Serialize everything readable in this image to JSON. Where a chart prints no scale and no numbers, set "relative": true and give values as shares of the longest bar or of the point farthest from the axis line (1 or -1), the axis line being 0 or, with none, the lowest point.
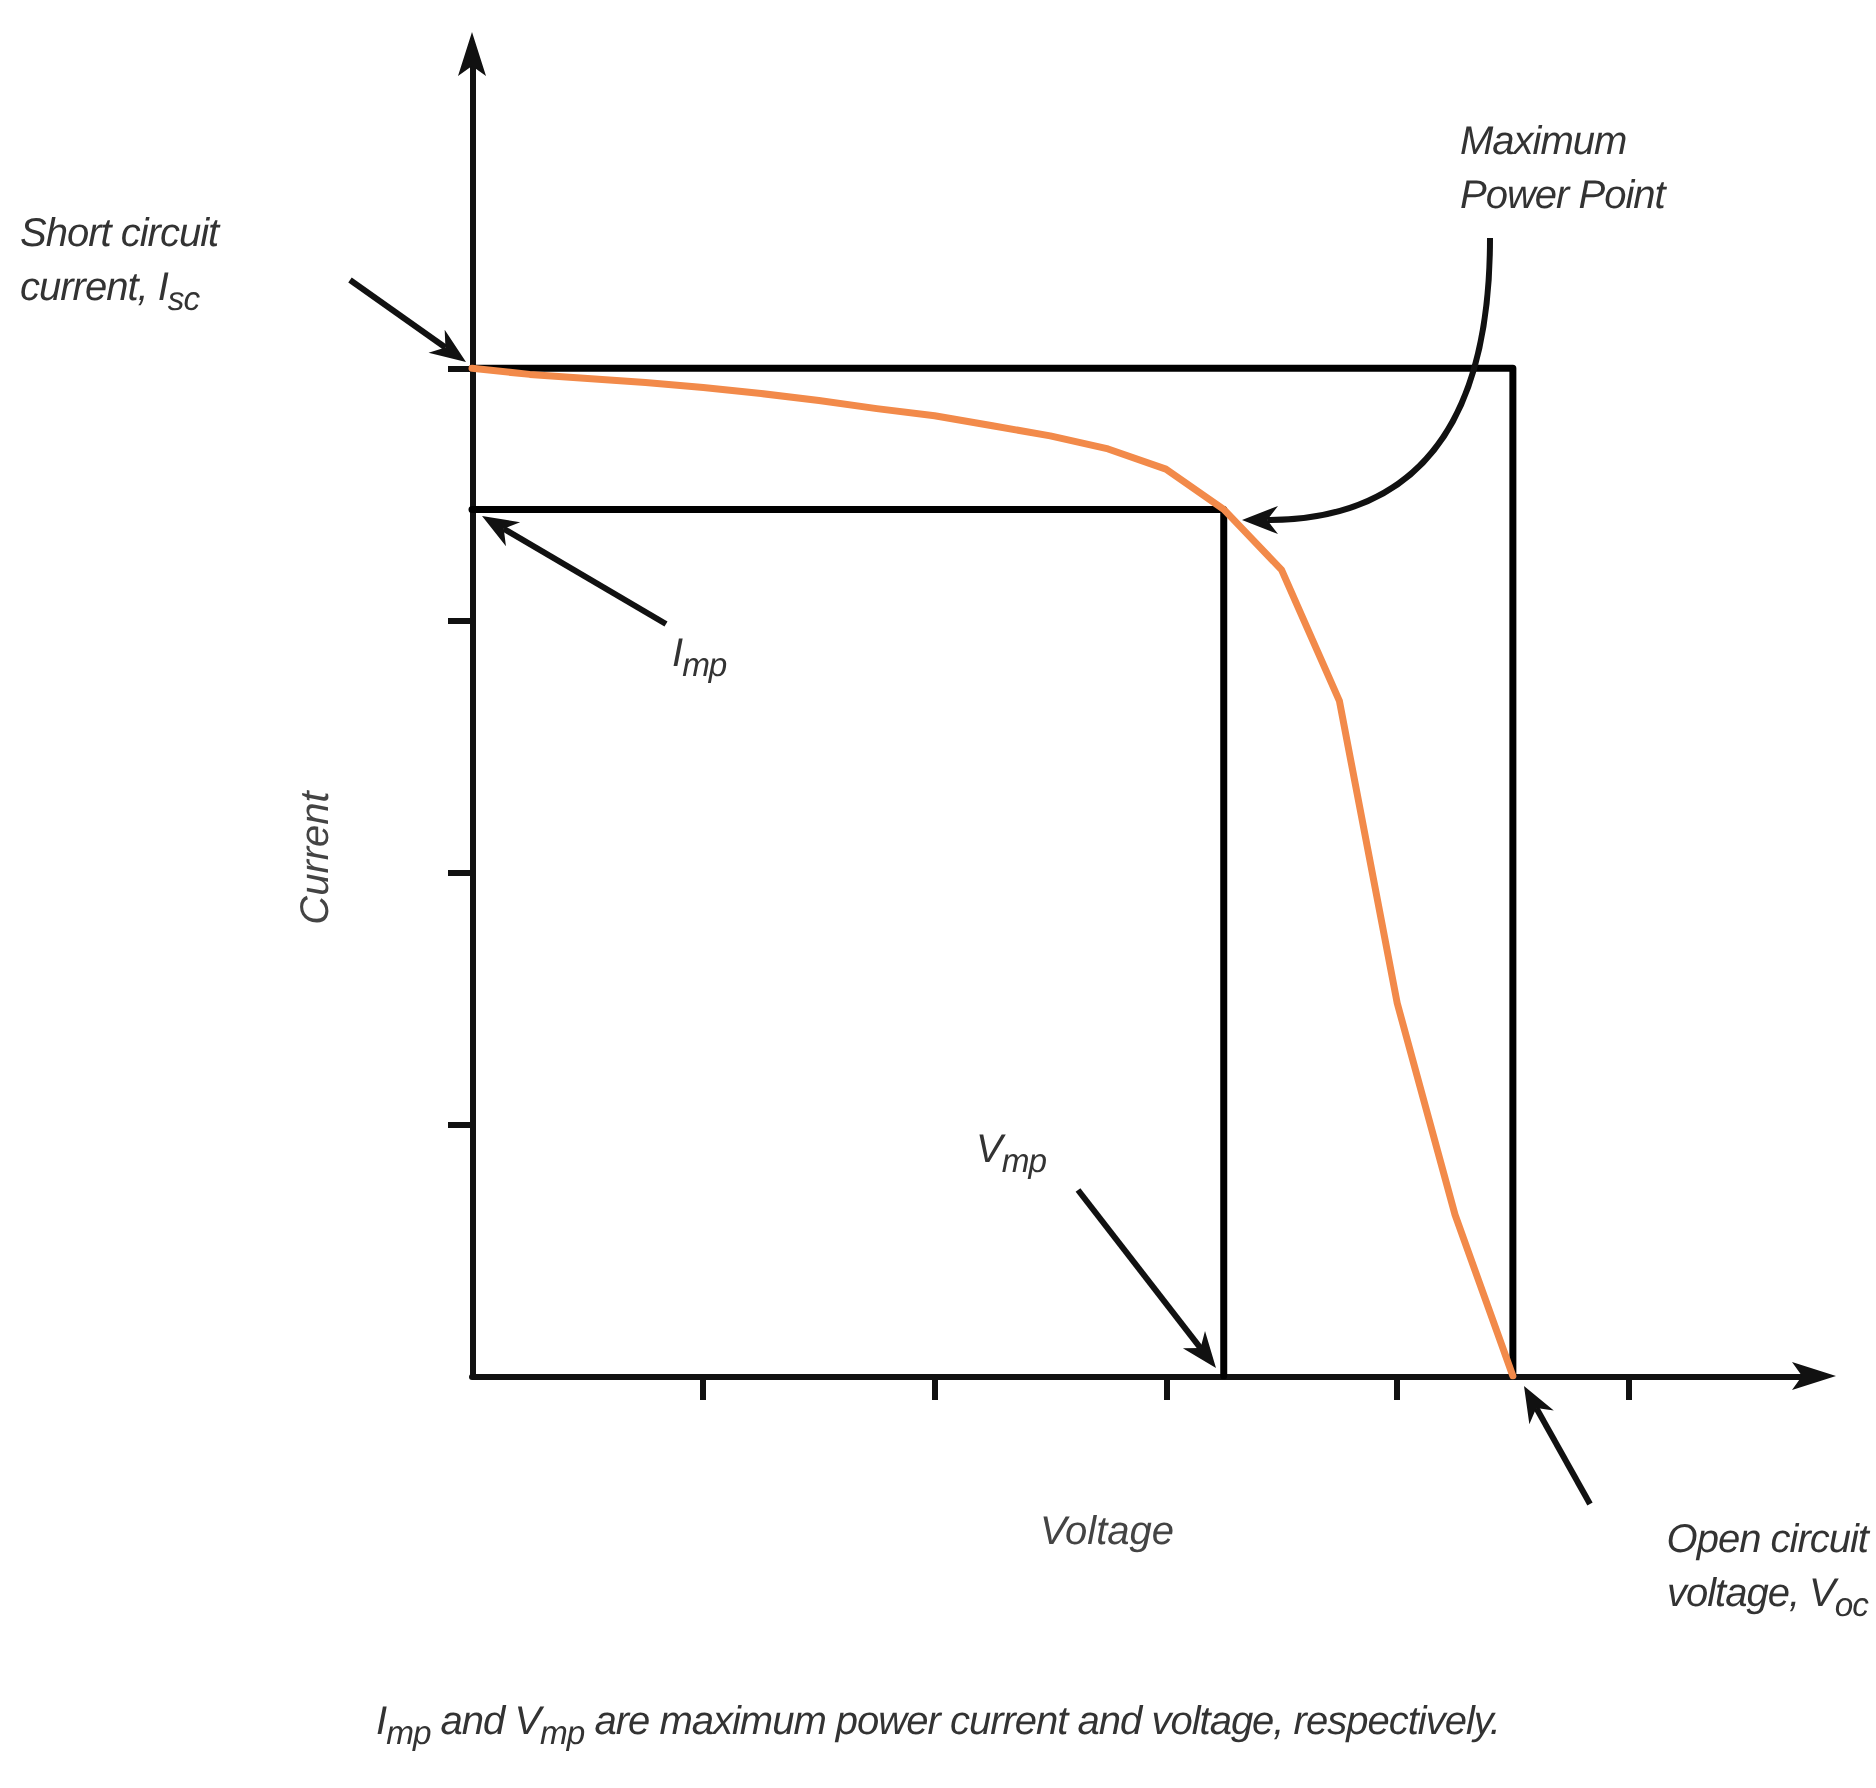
{
  "chart_data": {
    "type": "line",
    "xlabel": "Voltage",
    "ylabel": "Current",
    "relative": true,
    "marker": "none",
    "line_style": "solid",
    "categories": [
      null,
      null,
      null,
      null,
      null,
      null,
      null,
      null,
      null,
      null,
      null,
      null,
      null,
      null,
      null,
      null,
      null,
      null,
      null,
      null,
      null,
      null,
      null,
      null
    ],
    "series": [
      {
        "type": "step",
        "color": "#000000",
        "values": [
          1,
          1,
          1,
          1,
          1,
          1,
          1,
          1,
          1,
          1,
          1,
          1,
          1,
          1,
          1,
          1,
          1,
          1,
          0,
          null,
          null,
          null,
          null,
          null
        ]
      },
      {
        "type": "step",
        "color": "#000000",
        "values": [
          0.86,
          0.86,
          0.86,
          0.86,
          0.86,
          0.86,
          0.86,
          0.86,
          0.86,
          0.86,
          0.86,
          0.86,
          0.86,
          0,
          null,
          null,
          null,
          null,
          null,
          null,
          null,
          null,
          null,
          null
        ]
      },
      {
        "color": "#f28a4a",
        "values": [
          1,
          0.994,
          0.99,
          0.986,
          0.981,
          0.975,
          0.968,
          0.96,
          0.953,
          0.943,
          0.933,
          0.92,
          0.9,
          0.86,
          0.8,
          0.67,
          0.37,
          0.16,
          0,
          null,
          null,
          null,
          null,
          null
        ]
      }
    ],
    "annotations": [
      "Short circuit current, I$_{sc}$",
      "Maximum Power Point",
      "I$_{mp}$",
      "V$_{mp}$",
      "Open circuit voltage, V$_{oc}$",
      "I$_{mp}$ and V$_{mp}$ are maximum power current and voltage, respectively."
    ]
  }
}
